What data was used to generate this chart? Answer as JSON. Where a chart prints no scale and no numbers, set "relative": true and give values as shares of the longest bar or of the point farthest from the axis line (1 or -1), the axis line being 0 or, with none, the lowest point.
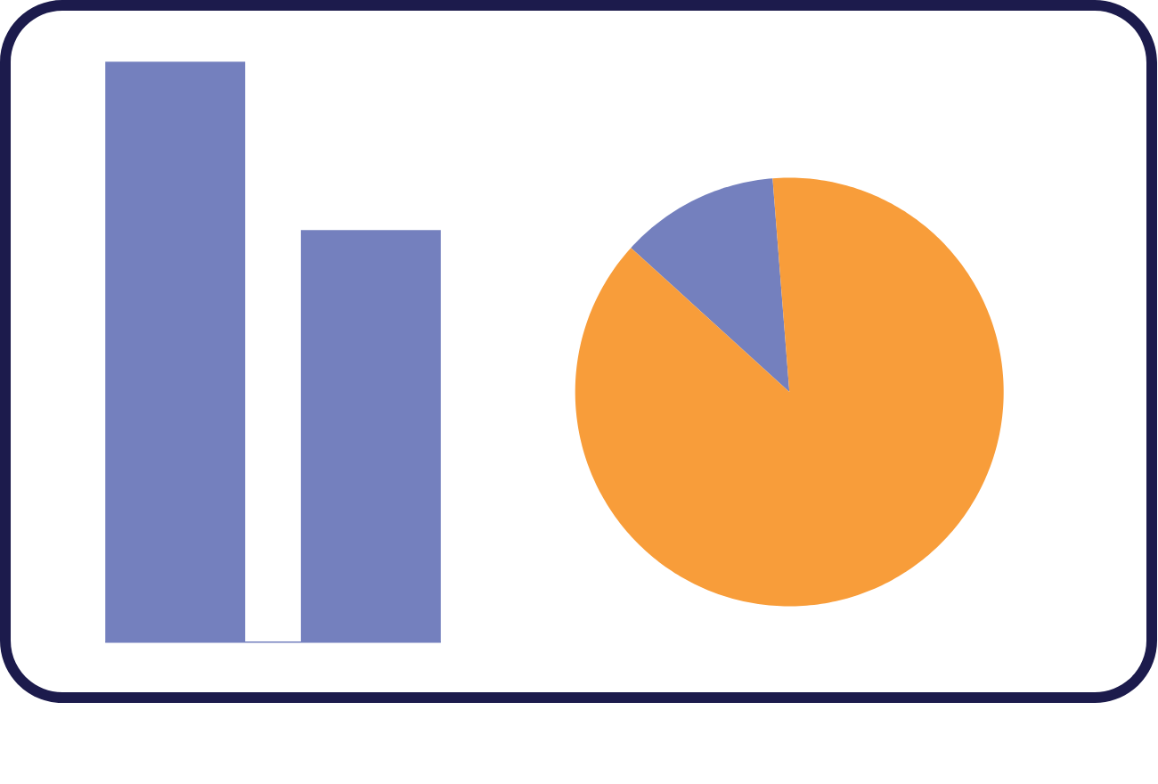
{
  "chart_data": [
    {
      "type": "bar",
      "relative": true,
      "categories": [
        null,
        null
      ],
      "values": [
        1,
        0.71
      ],
      "color": "#7480be"
    },
    {
      "type": "pie",
      "categories": [
        null,
        null
      ],
      "values": [
        12,
        88
      ],
      "colors": [
        "#7480be",
        "#f89d3a"
      ]
    }
  ]
}
